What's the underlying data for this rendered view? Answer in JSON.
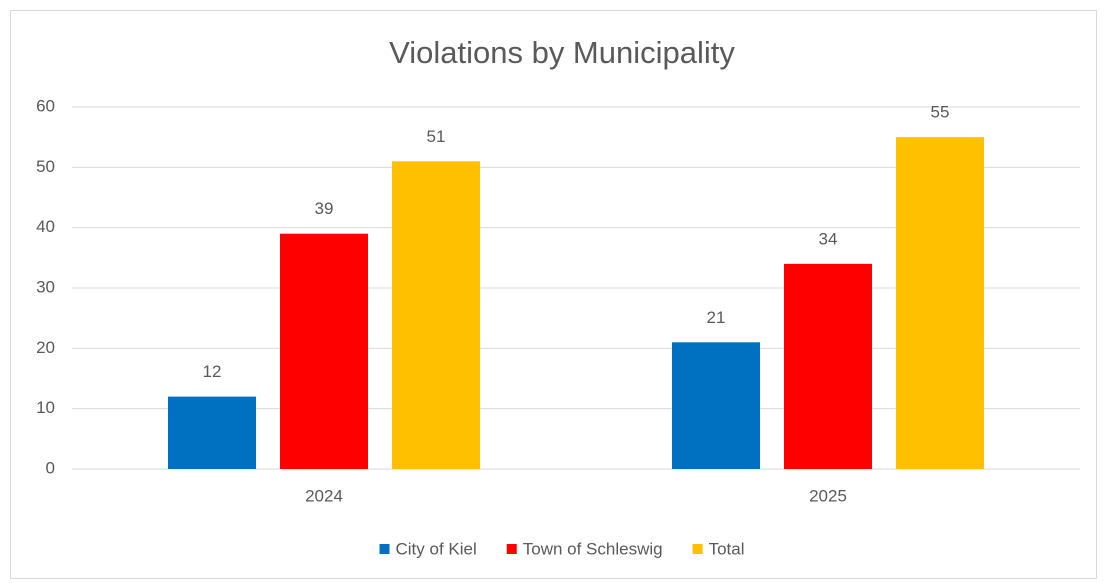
{
  "chart_data": {
    "type": "bar",
    "title": "Violations by Municipality",
    "categories": [
      "2024",
      "2025"
    ],
    "series": [
      {
        "name": "City of Kiel",
        "color": "#0070C0",
        "values": [
          12,
          21
        ]
      },
      {
        "name": "Town of Schleswig",
        "color": "#FF0000",
        "values": [
          39,
          34
        ]
      },
      {
        "name": "Total",
        "color": "#FFC000",
        "values": [
          51,
          55
        ]
      }
    ],
    "ylim": [
      0,
      60
    ],
    "yticks": [
      0,
      10,
      20,
      30,
      40,
      50,
      60
    ],
    "grid": true,
    "legend": "bottom",
    "data_labels": true
  }
}
